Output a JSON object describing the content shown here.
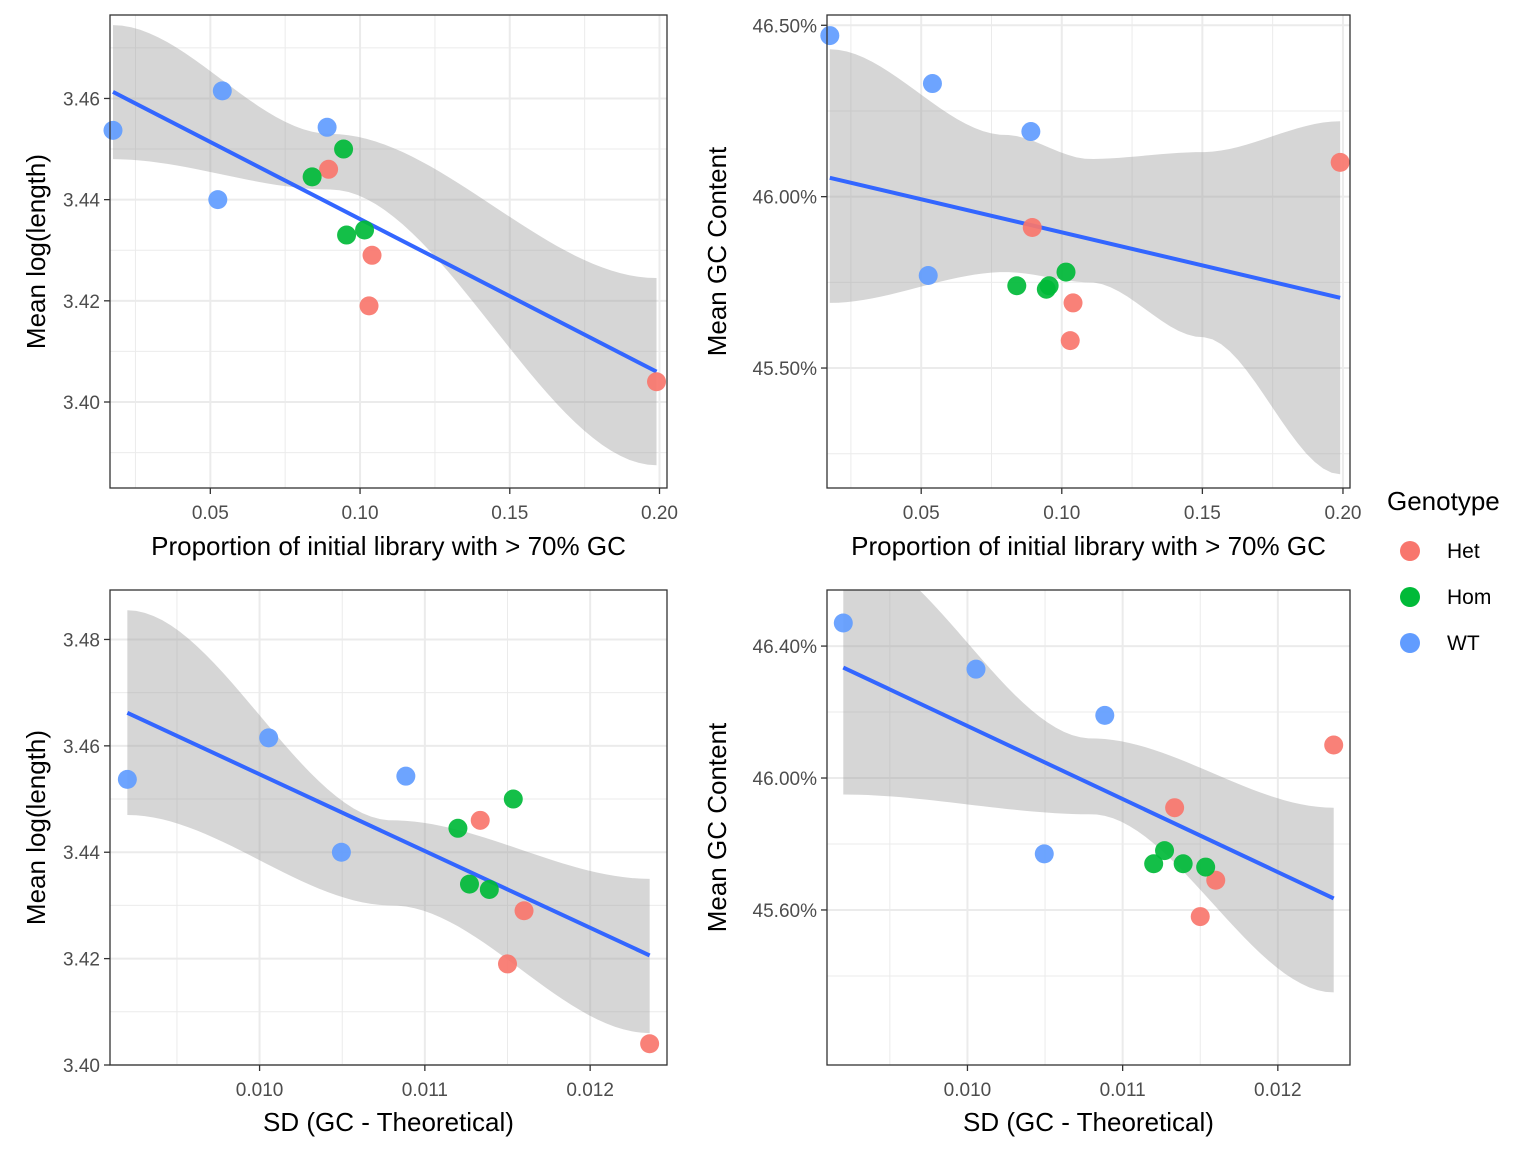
{
  "legend": {
    "title": "Genotype",
    "items": [
      {
        "label": "Het",
        "color": "#F8766D"
      },
      {
        "label": "Hom",
        "color": "#00BA38"
      },
      {
        "label": "WT",
        "color": "#619CFF"
      }
    ]
  },
  "chart_data": [
    {
      "type": "scatter",
      "xlabel": "Proportion of initial library with > 70% GC",
      "ylabel": "Mean log(length)",
      "xlim": [
        0.0165,
        0.2025
      ],
      "ylim": [
        3.383,
        3.4765
      ],
      "xticks": [
        0.05,
        0.1,
        0.15,
        0.2
      ],
      "xtick_labels": [
        "0.05",
        "0.10",
        "0.15",
        "0.20"
      ],
      "yticks": [
        3.4,
        3.42,
        3.44,
        3.46
      ],
      "ytick_labels": [
        "3.40",
        "3.42",
        "3.44",
        "3.46"
      ],
      "grid": true,
      "series": [
        {
          "name": "Het",
          "color": "#F8766D",
          "x": [
            0.0895,
            0.104,
            0.103,
            0.199
          ],
          "y": [
            3.446,
            3.429,
            3.419,
            3.404
          ]
        },
        {
          "name": "Hom",
          "color": "#00BA38",
          "x": [
            0.0945,
            0.084,
            0.0955,
            0.1015
          ],
          "y": [
            3.45,
            3.4445,
            3.433,
            3.434
          ]
        },
        {
          "name": "WT",
          "color": "#619CFF",
          "x": [
            0.0175,
            0.054,
            0.0525,
            0.089
          ],
          "y": [
            3.4537,
            3.4615,
            3.44,
            3.4543
          ]
        }
      ],
      "fit": {
        "color": "#3366FF",
        "x": [
          0.0175,
          0.199
        ],
        "y": [
          3.4613,
          3.406
        ]
      },
      "band": {
        "x": [
          0.0175,
          0.09,
          0.199
        ],
        "upper": [
          3.4745,
          3.453,
          3.4245
        ],
        "lower": [
          3.448,
          3.442,
          3.3875
        ]
      }
    },
    {
      "type": "scatter",
      "xlabel": "Proportion of initial library with > 70% GC",
      "ylabel": "Mean GC Content",
      "xlim": [
        0.0165,
        0.2025
      ],
      "ylim": [
        45.15,
        46.53
      ],
      "xticks": [
        0.05,
        0.1,
        0.15,
        0.2
      ],
      "xtick_labels": [
        "0.05",
        "0.10",
        "0.15",
        "0.20"
      ],
      "yticks": [
        45.5,
        46.0,
        46.5
      ],
      "ytick_labels": [
        "45.50%",
        "46.00%",
        "46.50%"
      ],
      "grid": true,
      "series": [
        {
          "name": "Het",
          "color": "#F8766D",
          "x": [
            0.199,
            0.0895,
            0.104,
            0.103
          ],
          "y": [
            46.1,
            45.91,
            45.69,
            45.58
          ]
        },
        {
          "name": "Hom",
          "color": "#00BA38",
          "x": [
            0.084,
            0.0945,
            0.0955,
            0.1015
          ],
          "y": [
            45.74,
            45.73,
            45.74,
            45.78
          ]
        },
        {
          "name": "WT",
          "color": "#619CFF",
          "x": [
            0.0175,
            0.054,
            0.089,
            0.0525
          ],
          "y": [
            46.47,
            46.33,
            46.19,
            45.77
          ]
        }
      ],
      "fit": {
        "color": "#3366FF",
        "x": [
          0.0175,
          0.199
        ],
        "y": [
          46.055,
          45.705
        ]
      },
      "band": {
        "x": [
          0.0175,
          0.08,
          0.11,
          0.15,
          0.199
        ],
        "upper": [
          46.43,
          46.18,
          46.11,
          46.13,
          46.22
        ],
        "lower": [
          45.69,
          45.78,
          45.75,
          45.59,
          45.19
        ]
      }
    },
    {
      "type": "scatter",
      "xlabel": "SD (GC - Theoretical)",
      "ylabel": "Mean log(length)",
      "xlim": [
        0.009095,
        0.012465
      ],
      "ylim": [
        3.4,
        3.4893
      ],
      "xticks": [
        0.01,
        0.011,
        0.012
      ],
      "xtick_labels": [
        "0.010",
        "0.011",
        "0.012"
      ],
      "yticks": [
        3.4,
        3.42,
        3.44,
        3.46,
        3.48
      ],
      "ytick_labels": [
        "3.40",
        "3.42",
        "3.44",
        "3.46",
        "3.48"
      ],
      "grid": true,
      "series": [
        {
          "name": "Het",
          "color": "#F8766D",
          "x": [
            0.011335,
            0.0116,
            0.0115,
            0.01236
          ],
          "y": [
            3.446,
            3.429,
            3.419,
            3.404
          ]
        },
        {
          "name": "Hom",
          "color": "#00BA38",
          "x": [
            0.011535,
            0.0112,
            0.01127,
            0.01139
          ],
          "y": [
            3.45,
            3.4445,
            3.434,
            3.433
          ]
        },
        {
          "name": "WT",
          "color": "#619CFF",
          "x": [
            0.0092,
            0.010055,
            0.010885,
            0.010495
          ],
          "y": [
            3.4537,
            3.4615,
            3.4543,
            3.44
          ]
        }
      ],
      "fit": {
        "color": "#3366FF",
        "x": [
          0.0092,
          0.01236
        ],
        "y": [
          3.4662,
          3.4206
        ]
      },
      "band": {
        "x": [
          0.0092,
          0.0108,
          0.01236
        ],
        "upper": [
          3.4855,
          3.446,
          3.435
        ],
        "lower": [
          3.447,
          3.43,
          3.406
        ]
      }
    },
    {
      "type": "scatter",
      "xlabel": "SD (GC - Theoretical)",
      "ylabel": "Mean GC Content",
      "xlim": [
        0.009095,
        0.012465
      ],
      "ylim": [
        45.13,
        46.57
      ],
      "xticks": [
        0.01,
        0.011,
        0.012
      ],
      "xtick_labels": [
        "0.010",
        "0.011",
        "0.012"
      ],
      "yticks": [
        45.6,
        46.0,
        46.4
      ],
      "ytick_labels": [
        "45.60%",
        "46.00%",
        "46.40%"
      ],
      "grid": true,
      "series": [
        {
          "name": "Het",
          "color": "#F8766D",
          "x": [
            0.01236,
            0.011335,
            0.0116,
            0.0115
          ],
          "y": [
            46.1,
            45.91,
            45.69,
            45.58
          ]
        },
        {
          "name": "Hom",
          "color": "#00BA38",
          "x": [
            0.0112,
            0.01127,
            0.01139,
            0.011535
          ],
          "y": [
            45.74,
            45.78,
            45.74,
            45.73
          ]
        },
        {
          "name": "WT",
          "color": "#619CFF",
          "x": [
            0.0092,
            0.010055,
            0.010885,
            0.010495
          ],
          "y": [
            46.47,
            46.33,
            46.19,
            45.77
          ]
        }
      ],
      "fit": {
        "color": "#3366FF",
        "x": [
          0.0092,
          0.01236
        ],
        "y": [
          46.335,
          45.635
        ]
      },
      "band": {
        "x": [
          0.0092,
          0.0108,
          0.01236
        ],
        "upper": [
          46.7,
          46.12,
          45.91
        ],
        "lower": [
          45.95,
          45.89,
          45.35
        ]
      }
    }
  ]
}
